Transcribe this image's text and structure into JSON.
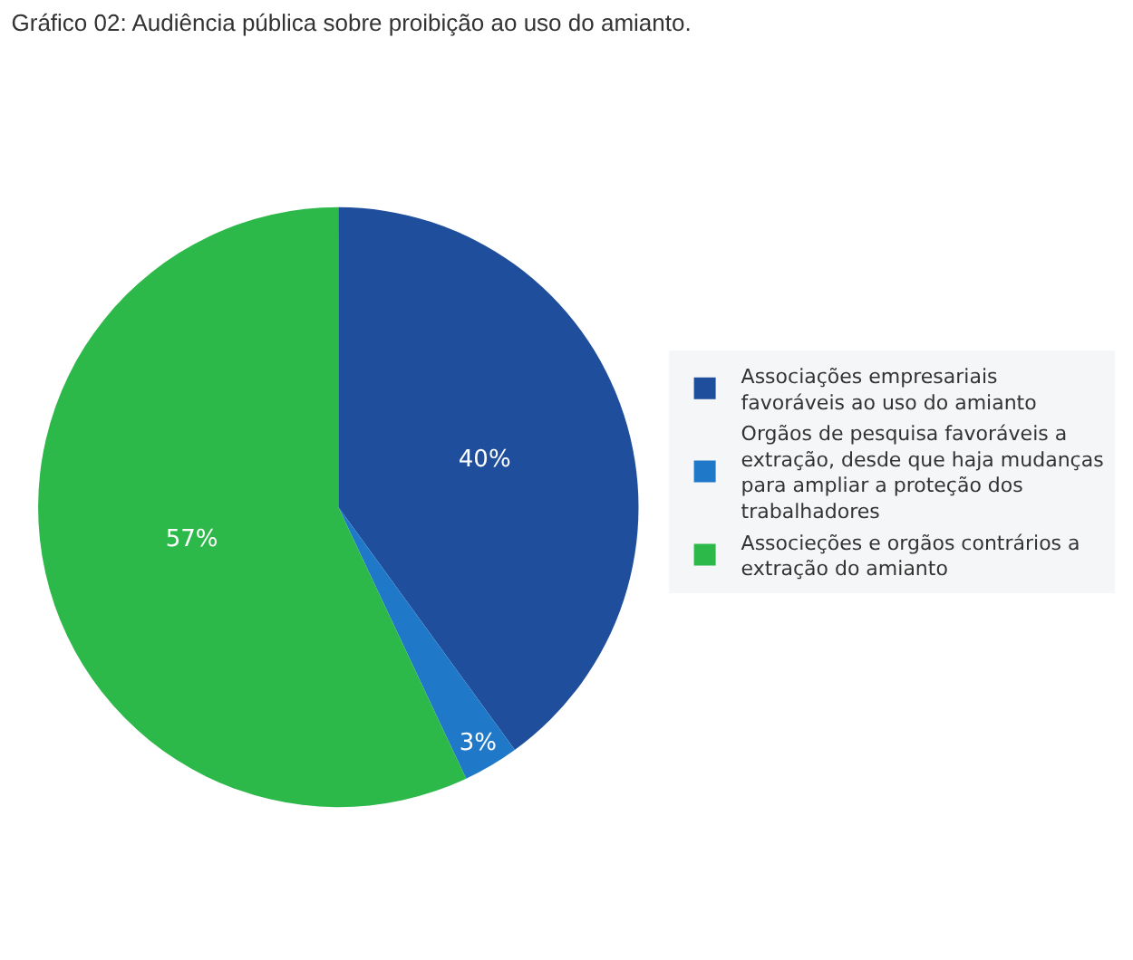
{
  "chart_data": {
    "type": "pie",
    "title": "Gráfico 02: Audiência pública sobre proibição ao uso do amianto.",
    "categories": [
      "Associações empresariais favoráveis ao uso do amianto",
      "Orgãos de pesquisa favoráveis a extração, desde que haja mudanças para ampliar a proteção dos trabalhadores",
      "Associeções e orgãos contrários a extração do amianto"
    ],
    "values": [
      40,
      3,
      57
    ],
    "colors": [
      "#1f4e9c",
      "#1f78c8",
      "#2db84a"
    ],
    "value_labels": [
      "40%",
      "3%",
      "57%"
    ],
    "legend": "right"
  }
}
